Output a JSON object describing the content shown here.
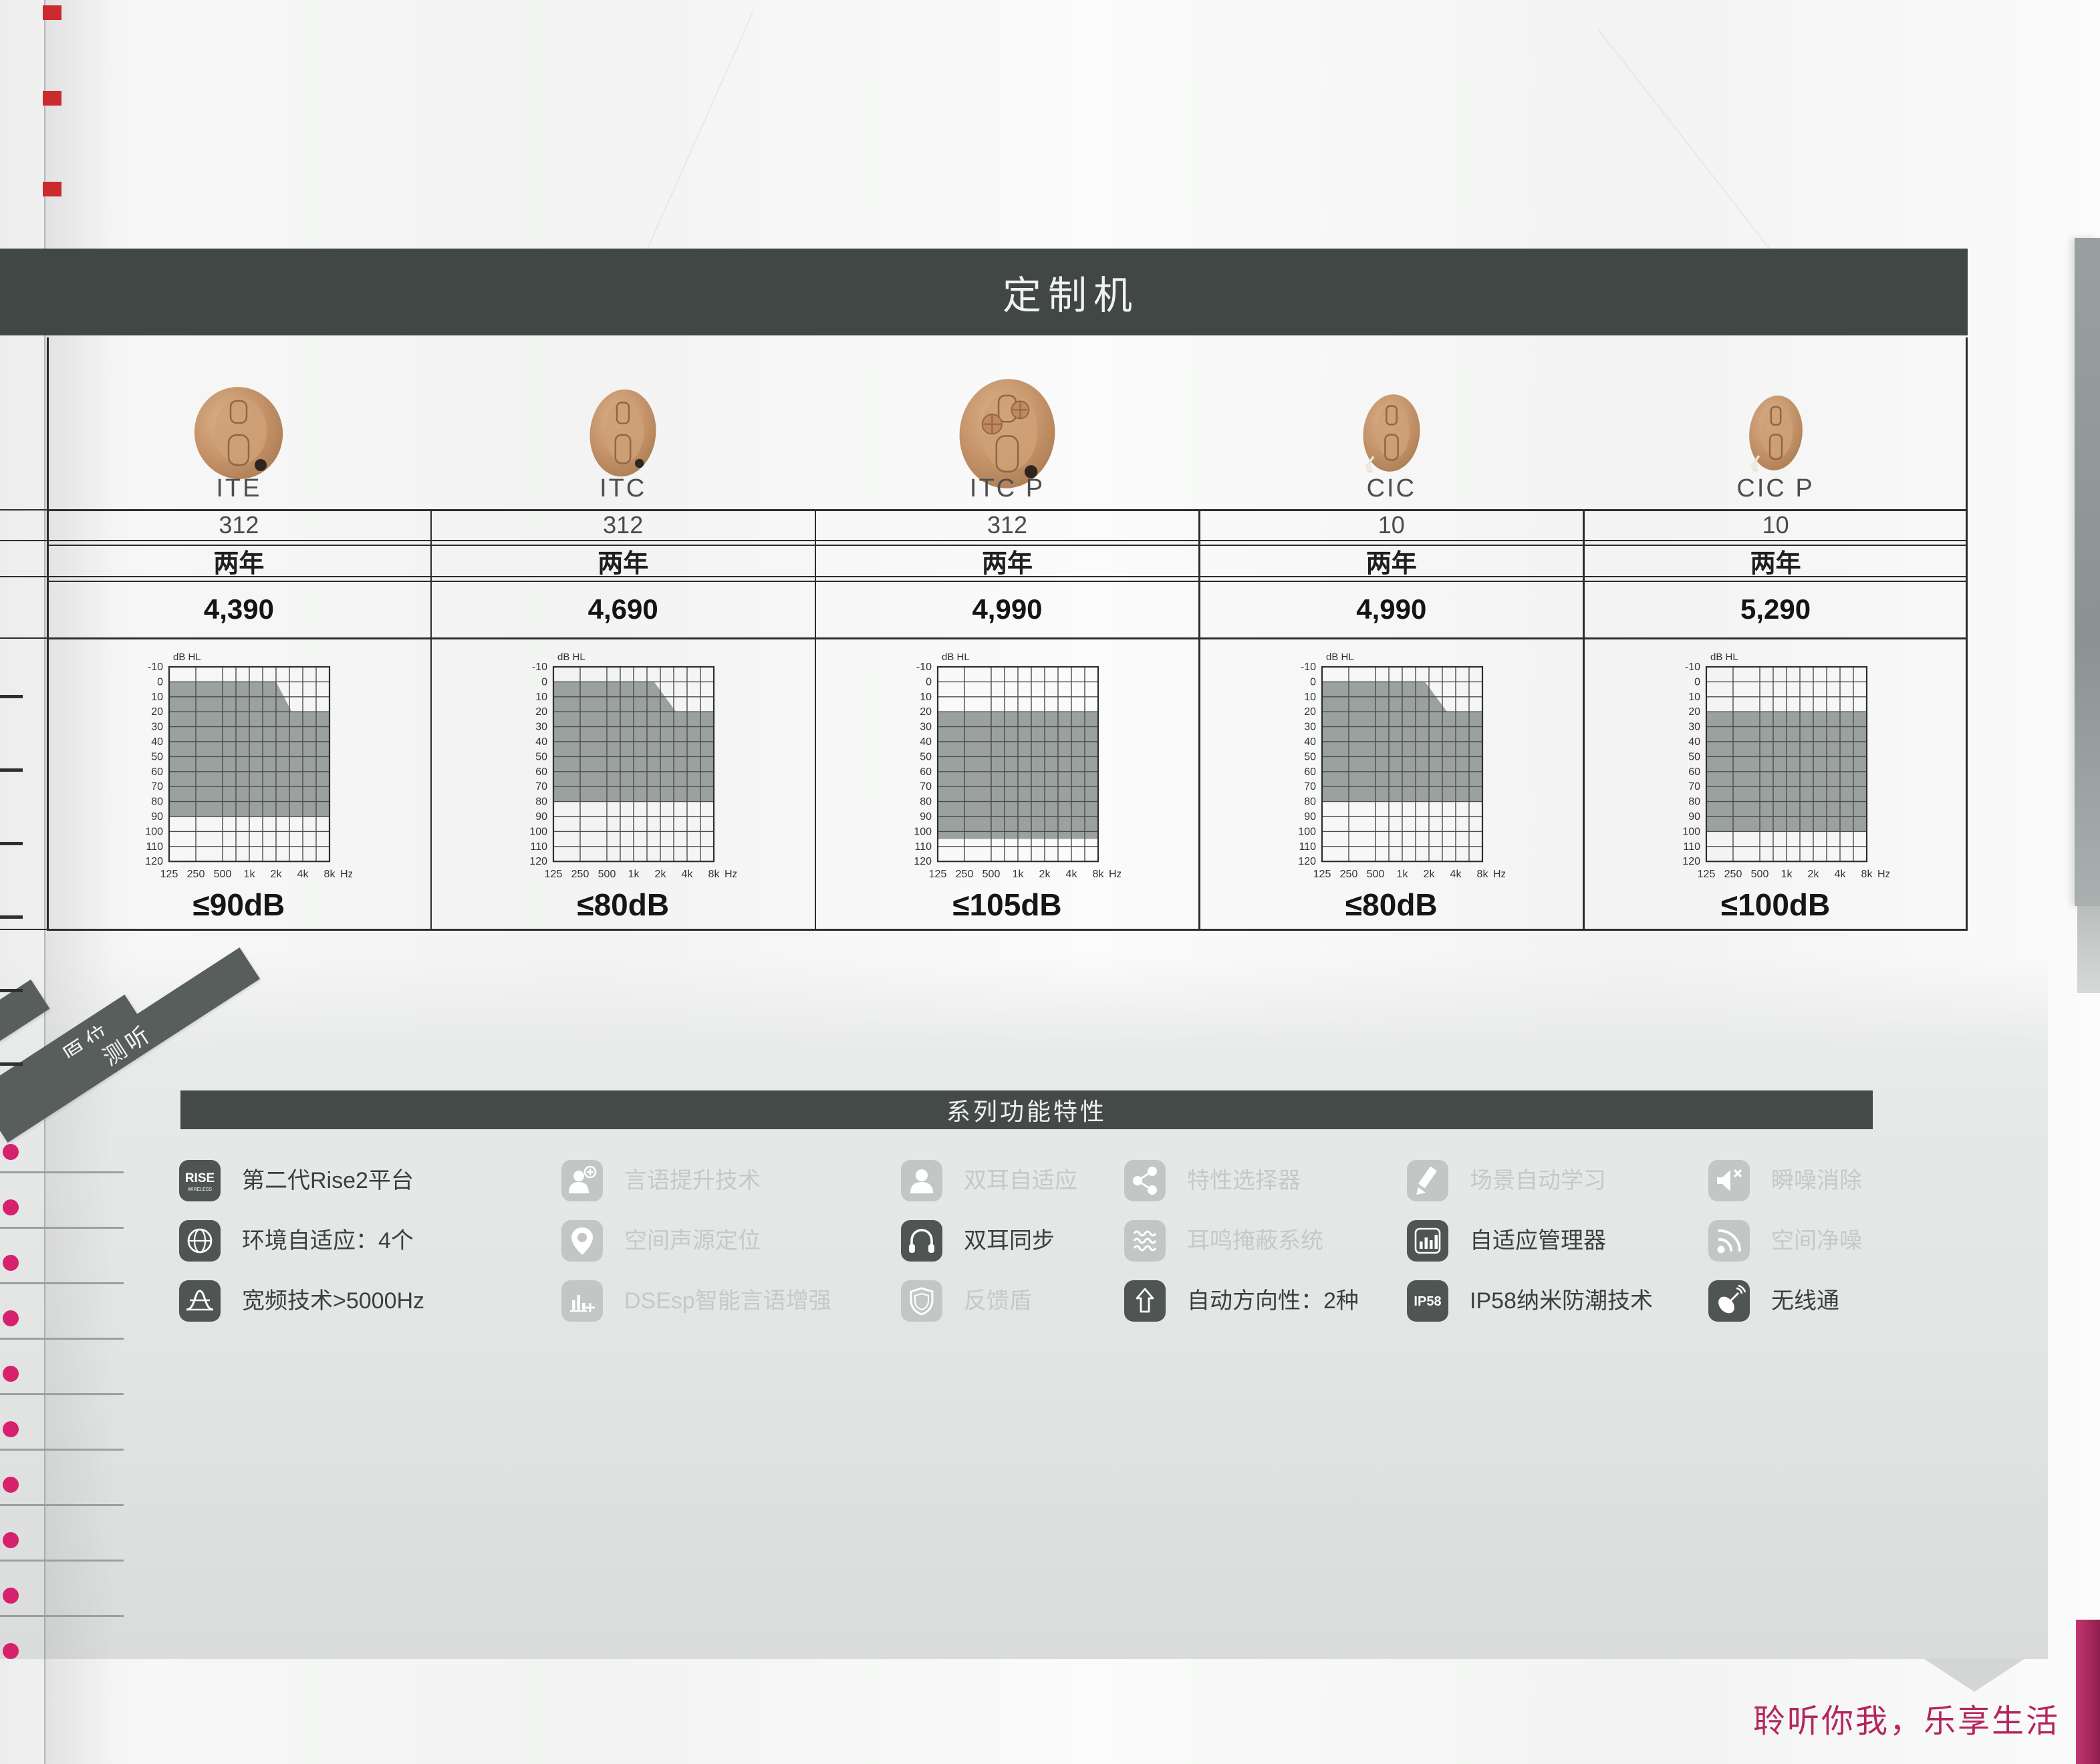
{
  "page": {
    "title": "定制机",
    "slogan": "聆听你我，乐享生活"
  },
  "side_tabs": [
    {
      "label": "原位"
    },
    {
      "label": "测听"
    }
  ],
  "products": [
    {
      "name": "ITE",
      "battery": "312",
      "warranty": "两年",
      "price": "4,390",
      "range_label": "≤90dB"
    },
    {
      "name": "ITC",
      "battery": "312",
      "warranty": "两年",
      "price": "4,690",
      "range_label": "≤80dB"
    },
    {
      "name": "ITC P",
      "battery": "312",
      "warranty": "两年",
      "price": "4,990",
      "range_label": "≤105dB"
    },
    {
      "name": "CIC",
      "battery": "10",
      "warranty": "两年",
      "price": "4,990",
      "range_label": "≤80dB"
    },
    {
      "name": "CIC P",
      "battery": "10",
      "warranty": "两年",
      "price": "5,290",
      "range_label": "≤100dB"
    }
  ],
  "features": {
    "title": "系列功能特性",
    "items": [
      {
        "label": "第二代Rise2平台",
        "icon": "rise-logo-icon",
        "active": true
      },
      {
        "label": "言语提升技术",
        "icon": "person-plus-icon",
        "active": false
      },
      {
        "label": "双耳自适应",
        "icon": "person-icon",
        "active": false
      },
      {
        "label": "特性选择器",
        "icon": "share-nodes-icon",
        "active": false
      },
      {
        "label": "场景自动学习",
        "icon": "pencil-icon",
        "active": false
      },
      {
        "label": "瞬噪消除",
        "icon": "speaker-mute-icon",
        "active": false
      },
      {
        "label": "环境自适应：4个",
        "icon": "globe-icon",
        "active": true
      },
      {
        "label": "空间声源定位",
        "icon": "location-pin-icon",
        "active": false
      },
      {
        "label": "双耳同步",
        "icon": "headphones-icon",
        "active": true
      },
      {
        "label": "耳鸣掩蔽系统",
        "icon": "waves-icon",
        "active": false
      },
      {
        "label": "自适应管理器",
        "icon": "bar-chart-icon",
        "active": true
      },
      {
        "label": "空间净噪",
        "icon": "signal-icon",
        "active": false
      },
      {
        "label": "宽频技术>5000Hz",
        "icon": "bell-curve-icon",
        "active": true
      },
      {
        "label": "DSEsp智能言语增强",
        "icon": "equalizer-icon",
        "active": false
      },
      {
        "label": "反馈盾",
        "icon": "shield-icon",
        "active": false
      },
      {
        "label": "自动方向性：2种",
        "icon": "arrow-up-icon",
        "active": true
      },
      {
        "label": "IP58纳米防潮技术",
        "icon": "ip58-icon",
        "active": true
      },
      {
        "label": "无线通",
        "icon": "satellite-icon",
        "active": true
      }
    ]
  },
  "audiogram_axis": {
    "y_label": "dB HL",
    "y_ticks": [
      -10,
      0,
      10,
      20,
      30,
      40,
      50,
      60,
      70,
      80,
      90,
      100,
      110,
      120
    ],
    "x_ticks": [
      "125",
      "250",
      "500",
      "1k",
      "2k",
      "4k",
      "8k"
    ],
    "x_unit": "Hz"
  },
  "chart_data": [
    {
      "type": "area",
      "model": "ITE",
      "fit_label": "≤90dB",
      "polygon_freq_db": [
        [
          125,
          0
        ],
        [
          2000,
          0
        ],
        [
          3000,
          20
        ],
        [
          8000,
          20
        ],
        [
          8000,
          90
        ],
        [
          125,
          90
        ]
      ]
    },
    {
      "type": "area",
      "model": "ITC",
      "fit_label": "≤80dB",
      "polygon_freq_db": [
        [
          125,
          0
        ],
        [
          1700,
          0
        ],
        [
          3000,
          20
        ],
        [
          8000,
          20
        ],
        [
          8000,
          80
        ],
        [
          125,
          80
        ]
      ]
    },
    {
      "type": "area",
      "model": "ITC P",
      "fit_label": "≤105dB",
      "polygon_freq_db": [
        [
          125,
          20
        ],
        [
          8000,
          20
        ],
        [
          8000,
          105
        ],
        [
          125,
          105
        ]
      ]
    },
    {
      "type": "area",
      "model": "CIC",
      "fit_label": "≤80dB",
      "polygon_freq_db": [
        [
          125,
          0
        ],
        [
          1800,
          0
        ],
        [
          3200,
          20
        ],
        [
          8000,
          20
        ],
        [
          8000,
          80
        ],
        [
          125,
          80
        ]
      ]
    },
    {
      "type": "area",
      "model": "CIC P",
      "fit_label": "≤100dB",
      "polygon_freq_db": [
        [
          125,
          20
        ],
        [
          8000,
          20
        ],
        [
          8000,
          100
        ],
        [
          125,
          100
        ]
      ]
    }
  ],
  "colors": {
    "header_bar": "#404744",
    "features_bar": "#434a48",
    "chart_fill": "#9aa19e",
    "active_icon": "#4e5553",
    "inactive_icon": "#c2c6c5",
    "slogan_pink": "#b5265d",
    "dot_pink": "#d6216e"
  }
}
